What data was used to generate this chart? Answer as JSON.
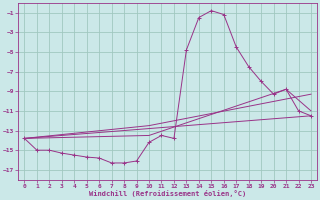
{
  "background_color": "#cbe8e8",
  "grid_color": "#a0c8c0",
  "line_color": "#993388",
  "xlabel": "Windchill (Refroidissement éolien,°C)",
  "xlim": [
    -0.5,
    23.5
  ],
  "ylim": [
    -18,
    0
  ],
  "xticks": [
    0,
    1,
    2,
    3,
    4,
    5,
    6,
    7,
    8,
    9,
    10,
    11,
    12,
    13,
    14,
    15,
    16,
    17,
    18,
    19,
    20,
    21,
    22,
    23
  ],
  "yticks": [
    -17,
    -15,
    -13,
    -11,
    -9,
    -7,
    -5,
    -3,
    -1
  ],
  "series": [
    [
      0,
      -13.8
    ],
    [
      1,
      -15.0
    ],
    [
      2,
      -15.0
    ],
    [
      3,
      -15.3
    ],
    [
      4,
      -15.5
    ],
    [
      5,
      -15.7
    ],
    [
      6,
      -15.8
    ],
    [
      7,
      -16.3
    ],
    [
      8,
      -16.3
    ],
    [
      9,
      -16.1
    ],
    [
      10,
      -14.2
    ],
    [
      11,
      -13.5
    ],
    [
      12,
      -13.8
    ],
    [
      13,
      -4.8
    ],
    [
      14,
      -1.5
    ],
    [
      15,
      -0.8
    ],
    [
      16,
      -1.2
    ],
    [
      17,
      -4.5
    ],
    [
      18,
      -6.5
    ],
    [
      19,
      -8.0
    ],
    [
      20,
      -9.3
    ],
    [
      21,
      -8.8
    ],
    [
      22,
      -11.0
    ],
    [
      23,
      -11.5
    ]
  ],
  "line_straight": [
    [
      0,
      -13.8
    ],
    [
      23,
      -11.5
    ]
  ],
  "line_mid1": [
    [
      0,
      -13.8
    ],
    [
      10,
      -12.5
    ],
    [
      23,
      -9.3
    ]
  ],
  "line_mid2": [
    [
      0,
      -13.8
    ],
    [
      10,
      -13.5
    ],
    [
      21,
      -8.8
    ],
    [
      23,
      -11.0
    ]
  ]
}
